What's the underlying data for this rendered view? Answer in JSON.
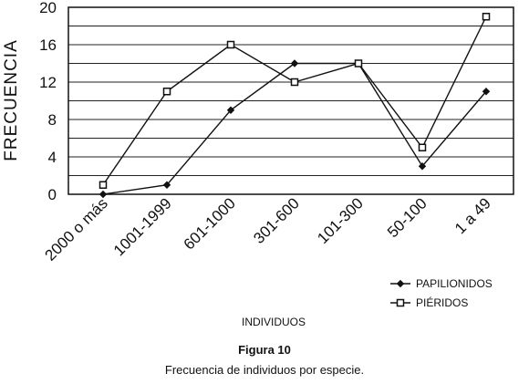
{
  "chart_data": {
    "type": "line",
    "categories": [
      "2000 o más",
      "1001-1999",
      "601-1000",
      "301-600",
      "101-300",
      "50-100",
      "1 a 49"
    ],
    "series": [
      {
        "name": "PAPILIONIDOS",
        "values": [
          0,
          1,
          9,
          14,
          14,
          3,
          11
        ],
        "marker": "filled-diamond"
      },
      {
        "name": "PIÉRIDOS",
        "values": [
          1,
          11,
          16,
          12,
          14,
          5,
          19
        ],
        "marker": "open-square"
      }
    ],
    "xlabel": "INDIVIDUOS",
    "ylabel": "FRECUENCIA",
    "ylim": [
      0,
      20
    ],
    "yticks": [
      0,
      4,
      8,
      12,
      16,
      20
    ],
    "grid": true,
    "legend_position": "bottom-right"
  },
  "caption": {
    "title": "Figura 10",
    "text": "Frecuencia de individuos por especie."
  }
}
